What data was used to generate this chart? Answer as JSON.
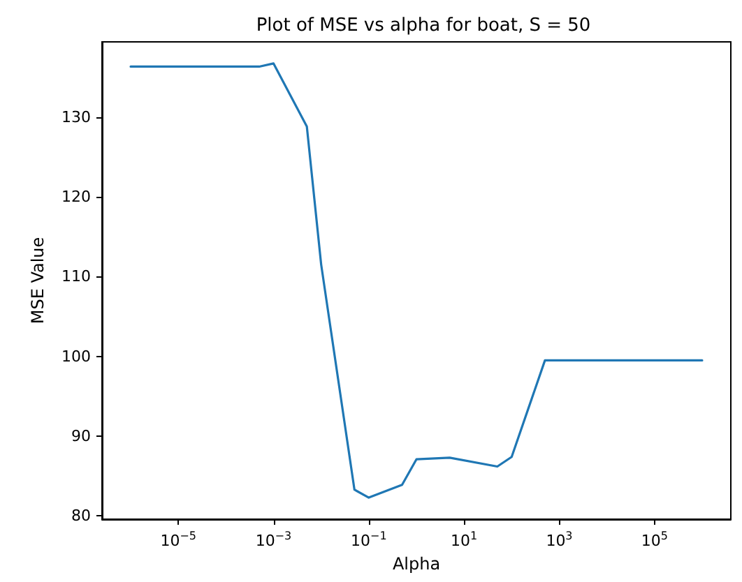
{
  "chart_data": {
    "type": "line",
    "title": "Plot of MSE vs alpha for boat, S = 50",
    "xlabel": "Alpha",
    "ylabel": "MSE Value",
    "log": "x",
    "x": [
      1e-06,
      0.0005,
      0.001,
      0.005,
      0.01,
      0.05,
      0.1,
      0.5,
      1,
      5,
      50,
      100,
      500,
      1000000.0
    ],
    "series": [
      {
        "color": "#1f77b4",
        "values": [
          136.3,
          136.3,
          136.7,
          128.8,
          111.5,
          83.3,
          82.3,
          83.9,
          87.1,
          87.3,
          86.2,
          87.4,
          99.5,
          99.5
        ]
      }
    ],
    "xlim": [
      2.5e-07,
      4000000.0
    ],
    "ylim": [
      79.6,
      139.4
    ],
    "xticks": [
      {
        "value": 1e-05,
        "label": "10$^{−5}$"
      },
      {
        "value": 0.001,
        "label": "10$^{−3}$"
      },
      {
        "value": 0.1,
        "label": "10$^{−1}$"
      },
      {
        "value": 10,
        "label": "10$^{1}$"
      },
      {
        "value": 1000,
        "label": "10$^{3}$"
      },
      {
        "value": 100000,
        "label": "10$^{5}$"
      }
    ],
    "yticks": [
      80,
      90,
      100,
      110,
      120,
      130
    ]
  }
}
